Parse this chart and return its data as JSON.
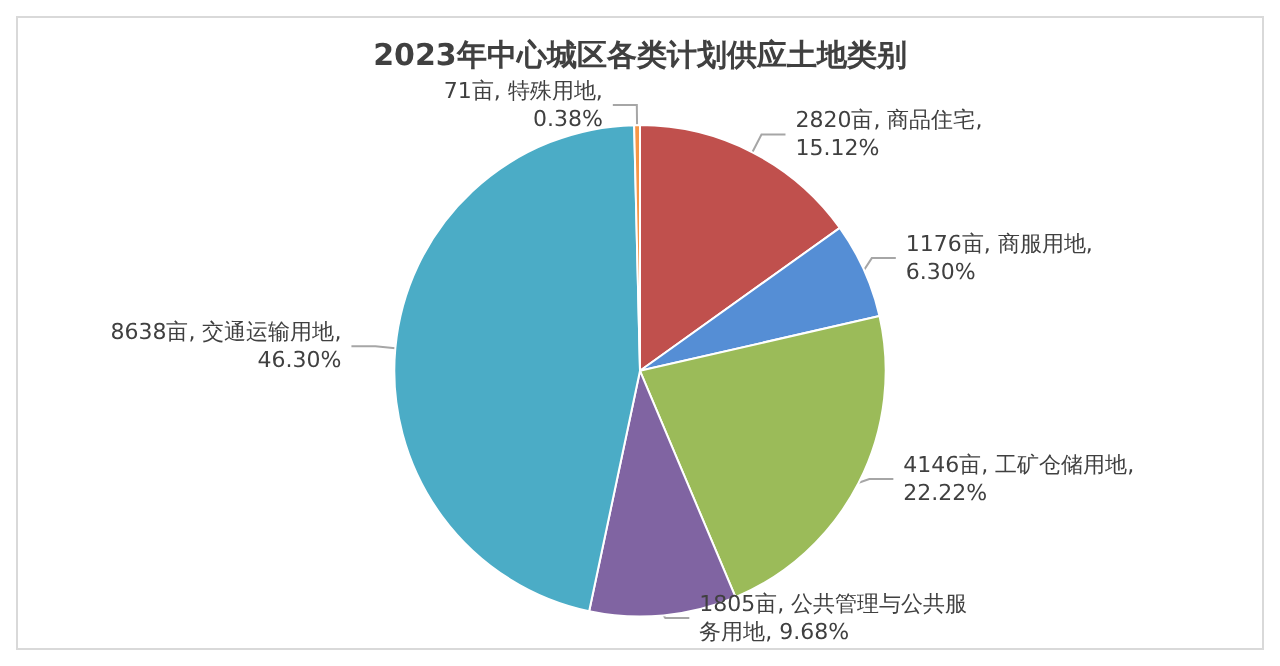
{
  "chart_data": {
    "type": "pie",
    "title": "2023年中心城区各类计划供应土地类别",
    "values": [
      2820,
      1176,
      4146,
      1805,
      8638,
      71
    ],
    "colors": [
      "#c0504d",
      "#558ed5",
      "#9bbb59",
      "#8064a2",
      "#4bacc6",
      "#f79646"
    ],
    "value_labels": [
      "2820亩, 商品住宅,\n15.12%",
      "1176亩, 商服用地,\n6.30%",
      "4146亩, 工矿仓储用地,\n22.22%",
      "1805亩, 公共管理与公共服务用地, 9.68%",
      "8638亩, 交通运输用地,\n46.30%",
      "71亩, 特殊用地,\n0.38%"
    ]
  }
}
